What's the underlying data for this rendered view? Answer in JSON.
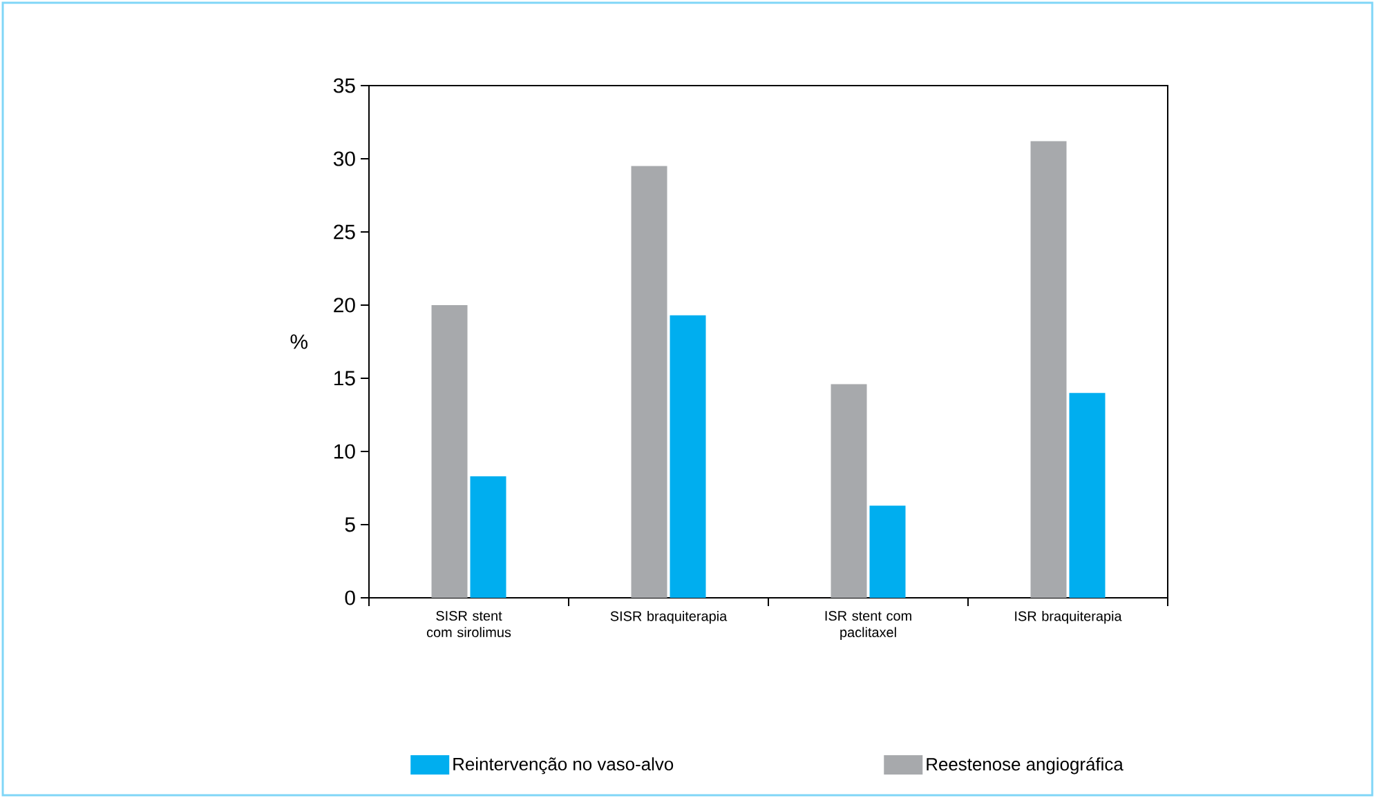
{
  "chart_data": {
    "type": "bar",
    "ylabel": "%",
    "categories": [
      "SISR stent com sirolimus",
      "SISR braquiterapia",
      "ISR stent com paclitaxel",
      "ISR braquiterapia"
    ],
    "series": [
      {
        "name": "Reestenose angiográfica",
        "color": "#a7a9ac",
        "values": [
          20.0,
          29.5,
          14.6,
          31.2
        ]
      },
      {
        "name": "Reintervenção no vaso-alvo",
        "color": "#00aeef",
        "values": [
          8.3,
          19.3,
          6.3,
          14.0
        ]
      }
    ],
    "ylim": [
      0,
      35
    ],
    "yticks": [
      0,
      5,
      10,
      15,
      20,
      25,
      30,
      35
    ],
    "grid": false,
    "legend": "bottom"
  }
}
